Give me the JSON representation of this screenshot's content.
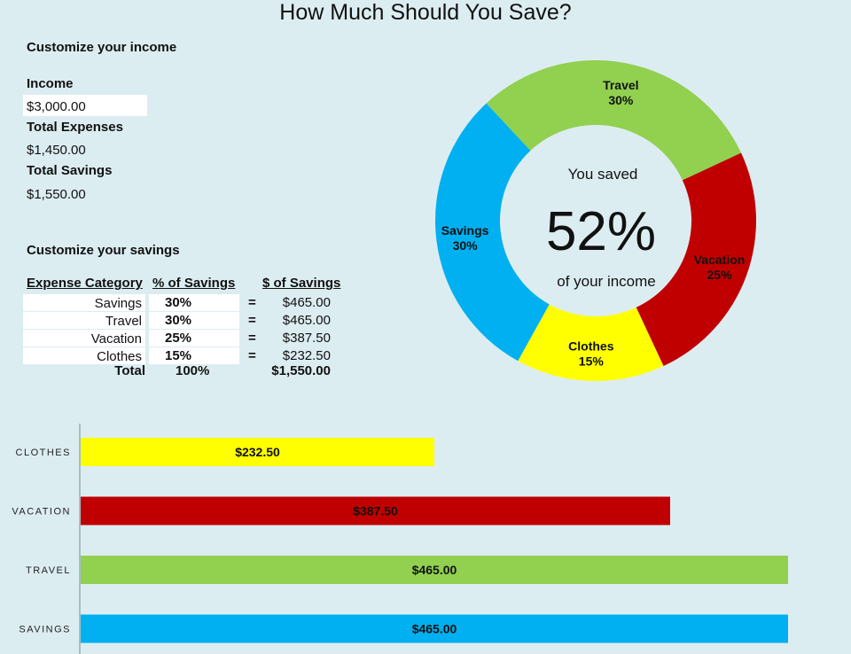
{
  "title": "How Much Should You Save?",
  "income_section": {
    "heading": "Customize your income",
    "income_label": "Income",
    "income_value": "$3,000.00",
    "total_expenses_label": "Total Expenses",
    "total_expenses_value": "$1,450.00",
    "total_savings_label": "Total Savings",
    "total_savings_value": "$1,550.00"
  },
  "savings_section": {
    "heading": "Customize your savings",
    "columns": [
      "Expense Category",
      "% of Savings",
      "$ of Savings"
    ],
    "equals_sign": "=",
    "rows": [
      {
        "category": "Savings",
        "percent": "30%",
        "amount": "$465.00"
      },
      {
        "category": "Travel",
        "percent": "30%",
        "amount": "$465.00"
      },
      {
        "category": "Vacation",
        "percent": "25%",
        "amount": "$387.50"
      },
      {
        "category": "Clothes",
        "percent": "15%",
        "amount": "$232.50"
      }
    ],
    "total": {
      "label": "Total",
      "percent": "100%",
      "amount": "$1,550.00"
    }
  },
  "donut": {
    "top_text": "You saved",
    "big_text": "52%",
    "bottom_text": "of your income"
  },
  "chart_data": [
    {
      "type": "pie",
      "title": "",
      "categories": [
        "Travel",
        "Vacation",
        "Clothes",
        "Savings"
      ],
      "values": [
        30,
        25,
        15,
        30
      ],
      "labels": [
        "30%",
        "25%",
        "15%",
        "30%"
      ],
      "colors": [
        "#92d050",
        "#c00000",
        "#ffff00",
        "#00b0f0"
      ],
      "legend": "none"
    },
    {
      "type": "bar",
      "orientation": "horizontal",
      "title": "",
      "categories": [
        "CLOTHES",
        "VACATION",
        "TRAVEL",
        "SAVINGS"
      ],
      "values": [
        232.5,
        387.5,
        465,
        465
      ],
      "value_labels": [
        "$232.50",
        "$387.50",
        "$465.00",
        "$465.00"
      ],
      "colors": [
        "#ffff00",
        "#c00000",
        "#92d050",
        "#00b0f0"
      ],
      "xlim": [
        0,
        465
      ],
      "grid": false,
      "legend": "none"
    }
  ]
}
